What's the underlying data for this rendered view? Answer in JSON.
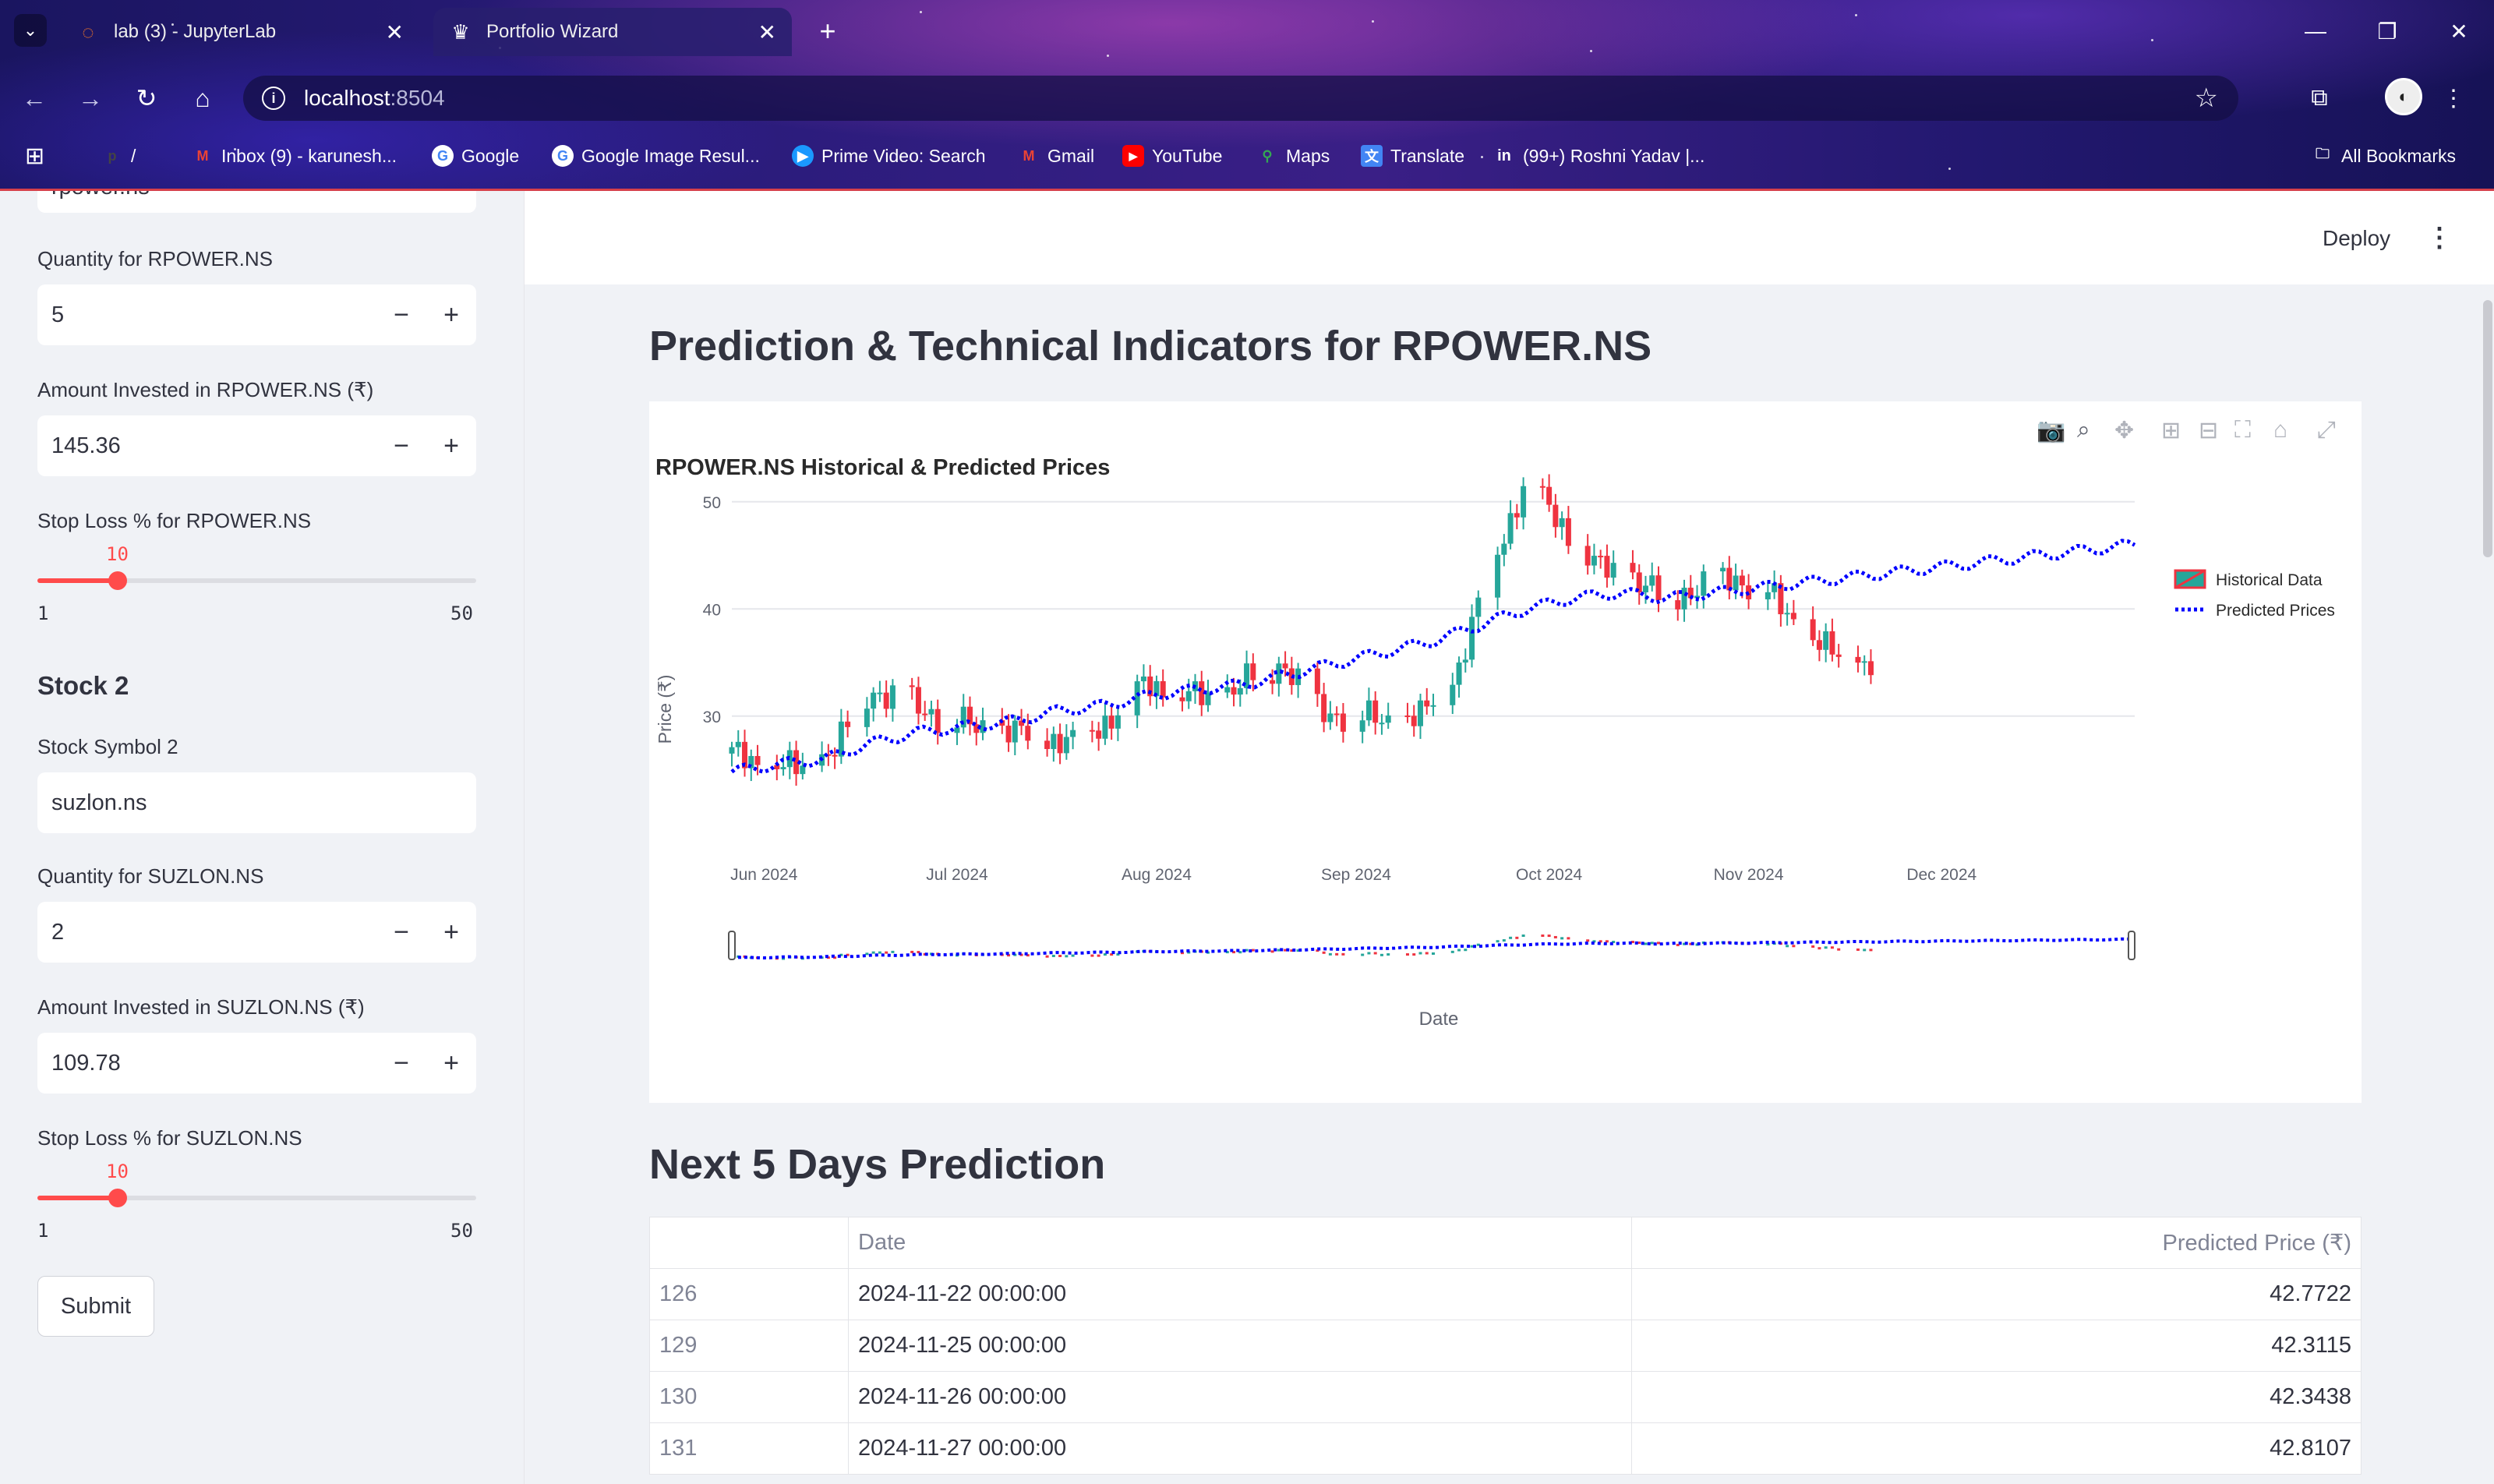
{
  "browser": {
    "tabs": [
      {
        "label": "lab (3) - JupyterLab",
        "active": false
      },
      {
        "label": "Portfolio Wizard",
        "active": true
      }
    ],
    "url_host": "localhost",
    "url_port": ":8504",
    "bookmarks": [
      {
        "label": "/",
        "icon": "pinterest-icon"
      },
      {
        "label": "Inbox (9) - karunesh...",
        "icon": "gmail-icon"
      },
      {
        "label": "Google",
        "icon": "google-icon"
      },
      {
        "label": "Google Image Resul...",
        "icon": "google-icon"
      },
      {
        "label": "Prime Video: Search",
        "icon": "prime-video-icon"
      },
      {
        "label": "Gmail",
        "icon": "gmail-icon"
      },
      {
        "label": "YouTube",
        "icon": "youtube-icon"
      },
      {
        "label": "Maps",
        "icon": "maps-icon"
      },
      {
        "label": "Translate",
        "icon": "translate-icon"
      },
      {
        "label": "(99+) Roshni Yadav |...",
        "icon": "linkedin-icon"
      }
    ],
    "all_bookmarks": "All Bookmarks"
  },
  "sidebar": {
    "partial_input": "rpower.ns",
    "stock1": {
      "quantity_label": "Quantity for RPOWER.NS",
      "quantity_value": "5",
      "amount_label": "Amount Invested in RPOWER.NS (₹)",
      "amount_value": "145.36",
      "stoploss_label": "Stop Loss % for RPOWER.NS",
      "stoploss_value": "10",
      "stoploss_min": "1",
      "stoploss_max": "50"
    },
    "stock2": {
      "heading": "Stock 2",
      "symbol_label": "Stock Symbol 2",
      "symbol_value": "suzlon.ns",
      "quantity_label": "Quantity for SUZLON.NS",
      "quantity_value": "2",
      "amount_label": "Amount Invested in SUZLON.NS (₹)",
      "amount_value": "109.78",
      "stoploss_label": "Stop Loss % for SUZLON.NS",
      "stoploss_value": "10",
      "stoploss_min": "1",
      "stoploss_max": "50"
    },
    "submit_label": "Submit"
  },
  "main": {
    "deploy_label": "Deploy",
    "title": "Prediction & Technical Indicators for RPOWER.NS",
    "next_title": "Next 5 Days Prediction",
    "table": {
      "headers": [
        "",
        "Date",
        "Predicted Price (₹)"
      ],
      "rows": [
        [
          "126",
          "2024-11-22 00:00:00",
          "42.7722"
        ],
        [
          "129",
          "2024-11-25 00:00:00",
          "42.3115"
        ],
        [
          "130",
          "2024-11-26 00:00:00",
          "42.3438"
        ],
        [
          "131",
          "2024-11-27 00:00:00",
          "42.8107"
        ]
      ]
    }
  },
  "chart_data": {
    "type": "line",
    "title": "RPOWER.NS Historical & Predicted Prices",
    "xlabel": "Date",
    "ylabel": "Price (₹)",
    "ylim": [
      23,
      55
    ],
    "yticks": [
      30,
      40,
      50
    ],
    "xticks": [
      "Jun 2024",
      "Jul 2024",
      "Aug 2024",
      "Sep 2024",
      "Oct 2024",
      "Nov 2024",
      "Dec 2024"
    ],
    "legend": [
      "Historical Data",
      "Predicted Prices"
    ],
    "legend_position": "top-right",
    "range_slider": true,
    "colors": {
      "increasing": "#26a69a",
      "decreasing": "#ef3340",
      "predicted": "#0000ff"
    },
    "series": [
      {
        "name": "Historical Data",
        "kind": "candlestick",
        "x_start": "2024-05-27",
        "x_end": "2024-11-20",
        "close_approx": [
          26.5,
          25.5,
          25.0,
          27.0,
          32.5,
          31.5,
          30.0,
          29.0,
          28.5,
          28.0,
          27.5,
          30.0,
          33.0,
          32.0,
          31.5,
          33.5,
          35.0,
          30.5,
          30.0,
          29.5,
          30.0,
          34.0,
          44.0,
          52.0,
          48.0,
          44.0,
          43.0,
          41.0,
          42.0,
          43.0,
          41.5,
          38.0,
          35.5,
          35.0
        ]
      },
      {
        "name": "Predicted Prices",
        "kind": "line-dotted",
        "x_start": "2024-05-27",
        "x_end": "2024-12-31",
        "values_approx": [
          24.8,
          25.5,
          26.0,
          27.5,
          28.5,
          29.0,
          29.5,
          30.5,
          31.0,
          32.0,
          32.5,
          33.0,
          34.0,
          35.0,
          36.0,
          37.0,
          38.5,
          40.0,
          41.0,
          41.5,
          41.0,
          41.5,
          42.0,
          42.5,
          43.0,
          43.5,
          44.0,
          44.5,
          45.0,
          45.5,
          46.0
        ]
      }
    ]
  }
}
